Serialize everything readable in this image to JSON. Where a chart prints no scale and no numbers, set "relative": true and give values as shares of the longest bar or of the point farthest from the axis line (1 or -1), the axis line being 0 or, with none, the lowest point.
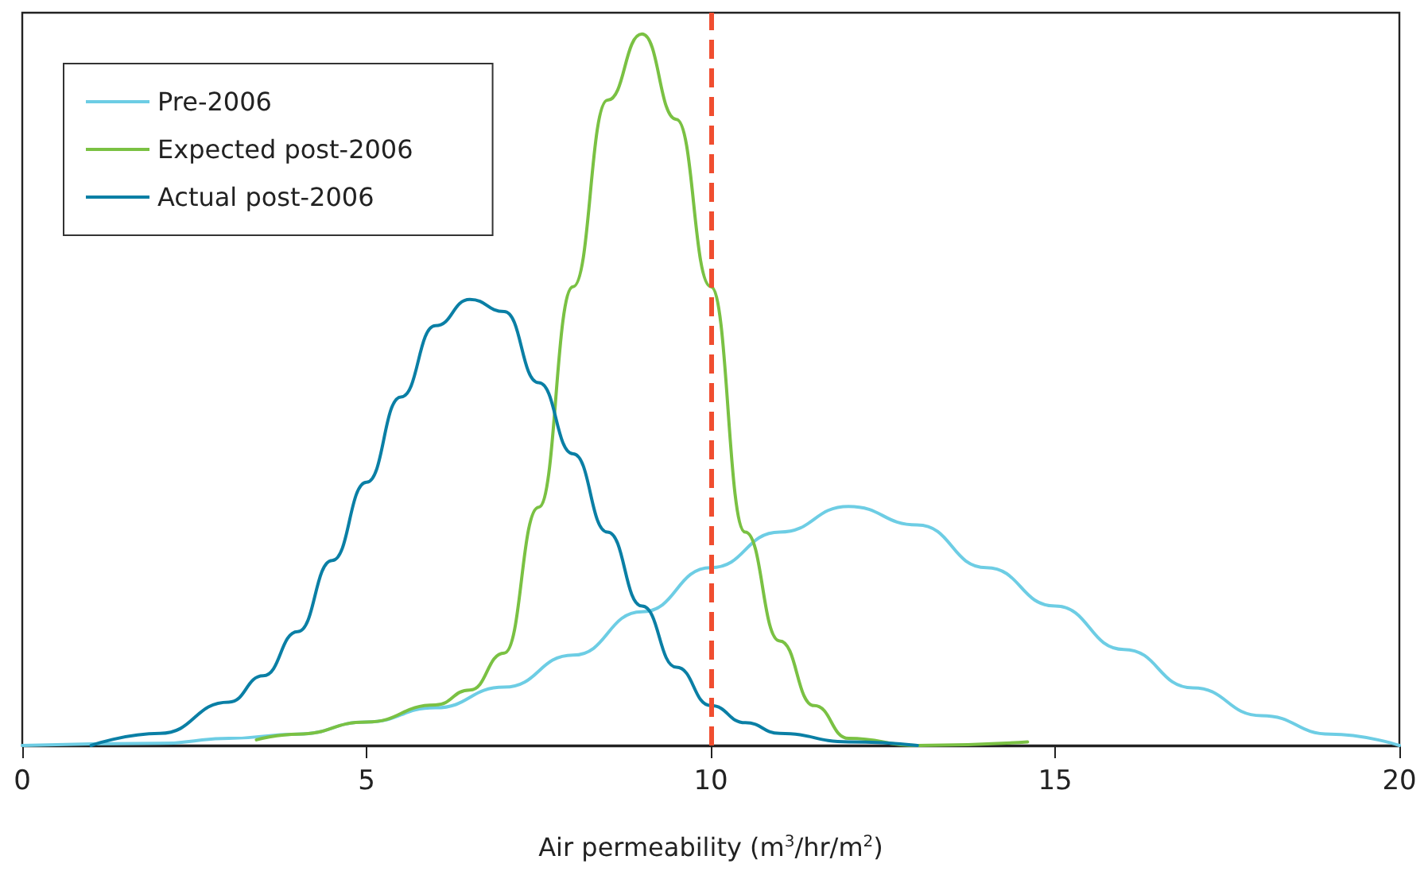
{
  "chart_data": {
    "type": "line",
    "xlabel": "Air permeability (m$^{3}$/hr/m$^{2}$)",
    "relative": true,
    "xlim": [
      0,
      20
    ],
    "xticks": [
      0,
      5,
      10,
      15,
      20
    ],
    "grid": false,
    "legend": "top left",
    "marker": "none",
    "line_style": "solid",
    "series": [
      {
        "name": "Pre-2006",
        "color": "#6dcde4",
        "x": [
          0,
          2,
          3,
          4,
          5,
          6,
          7,
          8,
          9,
          10,
          11,
          12,
          13,
          14,
          15,
          16,
          17,
          18,
          19,
          20
        ],
        "values": [
          0,
          0.003,
          0.01,
          0.016,
          0.033,
          0.053,
          0.082,
          0.127,
          0.188,
          0.25,
          0.3,
          0.336,
          0.31,
          0.25,
          0.196,
          0.135,
          0.081,
          0.042,
          0.016,
          0
        ]
      },
      {
        "name": "Expected post-2006",
        "color": "#7ac143",
        "x": [
          3.4,
          4,
          5,
          6,
          6.5,
          7,
          7.5,
          8,
          8.5,
          9,
          9.5,
          10,
          10.5,
          11,
          11.5,
          12,
          13,
          14.6
        ],
        "values": [
          0.008,
          0.016,
          0.033,
          0.057,
          0.078,
          0.13,
          0.335,
          0.645,
          0.907,
          1,
          0.88,
          0.645,
          0.3,
          0.147,
          0.056,
          0.01,
          0,
          0.005
        ]
      },
      {
        "name": "Actual post-2006",
        "color": "#0a7fa5",
        "x": [
          1,
          2,
          3,
          3.5,
          4,
          4.5,
          5,
          5.5,
          6,
          6.5,
          7,
          7.5,
          8,
          8.5,
          9,
          9.5,
          10,
          10.5,
          11,
          12,
          13
        ],
        "values": [
          0,
          0.017,
          0.061,
          0.098,
          0.16,
          0.26,
          0.37,
          0.49,
          0.59,
          0.627,
          0.61,
          0.51,
          0.41,
          0.3,
          0.196,
          0.11,
          0.056,
          0.032,
          0.017,
          0.005,
          0
        ]
      }
    ],
    "ref_lines": [
      {
        "axis": "x",
        "value": 10,
        "color": "#f04e30",
        "line_style": "dashed"
      }
    ]
  }
}
